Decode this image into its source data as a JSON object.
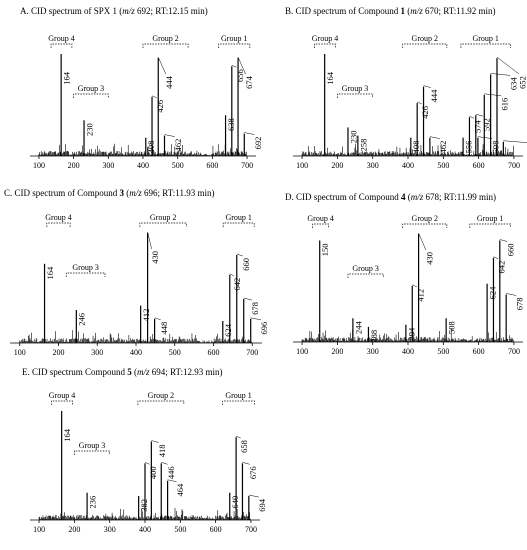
{
  "chart_data": [
    {
      "id": "A",
      "type": "bar",
      "title_parts": [
        "A. CID spectrum of SPX 1 (",
        "m/z",
        " 692; RT:12.15 min)"
      ],
      "x_ticks": [
        100,
        200,
        300,
        400,
        500,
        600,
        700
      ],
      "xlim": [
        80,
        720
      ],
      "groups": [
        {
          "name": "Group 4",
          "from": 135,
          "to": 195
        },
        {
          "name": "Group 3",
          "from": 200,
          "to": 300
        },
        {
          "name": "Group 2",
          "from": 400,
          "to": 530
        },
        {
          "name": "Group 1",
          "from": 618,
          "to": 708
        }
      ],
      "peaks": [
        {
          "mz": 164,
          "rel": 100,
          "label": "164"
        },
        {
          "mz": 230,
          "rel": 35,
          "label": "230"
        },
        {
          "mz": 408,
          "rel": 18,
          "label": "408"
        },
        {
          "mz": 426,
          "rel": 58,
          "label": "426"
        },
        {
          "mz": 444,
          "rel": 96,
          "label": "444"
        },
        {
          "mz": 462,
          "rel": 20,
          "label": "462"
        },
        {
          "mz": 638,
          "rel": 40,
          "label": "638"
        },
        {
          "mz": 656,
          "rel": 88,
          "label": "656"
        },
        {
          "mz": 674,
          "rel": 96,
          "label": "674"
        },
        {
          "mz": 692,
          "rel": 22,
          "label": "692"
        }
      ]
    },
    {
      "id": "B",
      "type": "bar",
      "title_parts": [
        "B. CID spectrum of Compound ",
        "1",
        " (",
        "m/z",
        " 670; RT:11.92 min)"
      ],
      "x_ticks": [
        100,
        200,
        300,
        400,
        500,
        600,
        700
      ],
      "xlim": [
        80,
        720
      ],
      "groups": [
        {
          "name": "Group 4",
          "from": 135,
          "to": 195
        },
        {
          "name": "Group 3",
          "from": 200,
          "to": 300
        },
        {
          "name": "Group 2",
          "from": 385,
          "to": 510
        },
        {
          "name": "Group 1",
          "from": 550,
          "to": 690
        }
      ],
      "peaks": [
        {
          "mz": 164,
          "rel": 100,
          "label": "164"
        },
        {
          "mz": 230,
          "rel": 28,
          "label": "230"
        },
        {
          "mz": 258,
          "rel": 20,
          "label": "258"
        },
        {
          "mz": 408,
          "rel": 18,
          "label": "408"
        },
        {
          "mz": 426,
          "rel": 52,
          "label": "426"
        },
        {
          "mz": 444,
          "rel": 68,
          "label": "444"
        },
        {
          "mz": 462,
          "rel": 18,
          "label": "462"
        },
        {
          "mz": 556,
          "rel": 18,
          "label": "556"
        },
        {
          "mz": 574,
          "rel": 38,
          "label": "574"
        },
        {
          "mz": 592,
          "rel": 40,
          "label": "592"
        },
        {
          "mz": 598,
          "rel": 18,
          "label": "598"
        },
        {
          "mz": 616,
          "rel": 60,
          "label": "616"
        },
        {
          "mz": 634,
          "rel": 80,
          "label": "634"
        },
        {
          "mz": 652,
          "rel": 96,
          "label": "652"
        },
        {
          "mz": 670,
          "rel": 14,
          "label": "670"
        }
      ]
    },
    {
      "id": "C",
      "type": "bar",
      "title_parts": [
        "C. CID spectrum of Compound ",
        "3",
        " (",
        "m/z",
        " 696; RT:11.93 min)"
      ],
      "x_ticks": [
        100,
        200,
        300,
        400,
        500,
        600,
        700
      ],
      "xlim": [
        80,
        720
      ],
      "groups": [
        {
          "name": "Group 4",
          "from": 170,
          "to": 230
        },
        {
          "name": "Group 3",
          "from": 220,
          "to": 320
        },
        {
          "name": "Group 2",
          "from": 410,
          "to": 530
        },
        {
          "name": "Group 1",
          "from": 625,
          "to": 705
        }
      ],
      "peaks": [
        {
          "mz": 164,
          "rel": 72,
          "label": "164"
        },
        {
          "mz": 246,
          "rel": 30,
          "label": "246"
        },
        {
          "mz": 412,
          "rel": 34,
          "label": "412"
        },
        {
          "mz": 430,
          "rel": 100,
          "label": "430"
        },
        {
          "mz": 448,
          "rel": 22,
          "label": "448"
        },
        {
          "mz": 624,
          "rel": 20,
          "label": "624"
        },
        {
          "mz": 642,
          "rel": 62,
          "label": "642"
        },
        {
          "mz": 660,
          "rel": 80,
          "label": "660"
        },
        {
          "mz": 678,
          "rel": 40,
          "label": "678"
        },
        {
          "mz": 696,
          "rel": 22,
          "label": "696"
        }
      ]
    },
    {
      "id": "D",
      "type": "bar",
      "title_parts": [
        "D. CID spectrum of Compound ",
        "4",
        " (",
        "m/z",
        " 678; RT:11.99 min)"
      ],
      "x_ticks": [
        100,
        200,
        300,
        400,
        500,
        600,
        700
      ],
      "xlim": [
        80,
        720
      ],
      "groups": [
        {
          "name": "Group 4",
          "from": 130,
          "to": 175
        },
        {
          "name": "Group 3",
          "from": 230,
          "to": 330
        },
        {
          "name": "Group 2",
          "from": 385,
          "to": 510
        },
        {
          "name": "Group 1",
          "from": 575,
          "to": 690
        }
      ],
      "peaks": [
        {
          "mz": 150,
          "rel": 94,
          "label": "150"
        },
        {
          "mz": 244,
          "rel": 22,
          "label": "244"
        },
        {
          "mz": 288,
          "rel": 14,
          "label": "288"
        },
        {
          "mz": 394,
          "rel": 16,
          "label": "394"
        },
        {
          "mz": 412,
          "rel": 52,
          "label": "412"
        },
        {
          "mz": 430,
          "rel": 100,
          "label": "430"
        },
        {
          "mz": 508,
          "rel": 22,
          "label": "508"
        },
        {
          "mz": 624,
          "rel": 54,
          "label": "624"
        },
        {
          "mz": 642,
          "rel": 78,
          "label": "642"
        },
        {
          "mz": 660,
          "rel": 94,
          "label": "660"
        },
        {
          "mz": 678,
          "rel": 44,
          "label": "678"
        }
      ]
    },
    {
      "id": "E",
      "type": "bar",
      "title_parts": [
        "E. CID spectrum Compound ",
        "5",
        " (",
        "m/z",
        " 694; RT:12.93 min)"
      ],
      "x_ticks": [
        100,
        200,
        300,
        400,
        500,
        600,
        700
      ],
      "xlim": [
        80,
        720
      ],
      "groups": [
        {
          "name": "Group 4",
          "from": 135,
          "to": 195
        },
        {
          "name": "Group 3",
          "from": 200,
          "to": 300
        },
        {
          "name": "Group 2",
          "from": 380,
          "to": 510
        },
        {
          "name": "Group 1",
          "from": 620,
          "to": 710
        }
      ],
      "peaks": [
        {
          "mz": 164,
          "rel": 100,
          "label": "164"
        },
        {
          "mz": 236,
          "rel": 25,
          "label": "236"
        },
        {
          "mz": 382,
          "rel": 22,
          "label": "382"
        },
        {
          "mz": 400,
          "rel": 52,
          "label": "400"
        },
        {
          "mz": 418,
          "rel": 72,
          "label": "418"
        },
        {
          "mz": 446,
          "rel": 52,
          "label": "446"
        },
        {
          "mz": 464,
          "rel": 36,
          "label": "464"
        },
        {
          "mz": 640,
          "rel": 25,
          "label": "640"
        },
        {
          "mz": 658,
          "rel": 76,
          "label": "658"
        },
        {
          "mz": 676,
          "rel": 52,
          "label": "676"
        },
        {
          "mz": 694,
          "rel": 22,
          "label": "694"
        }
      ]
    }
  ]
}
